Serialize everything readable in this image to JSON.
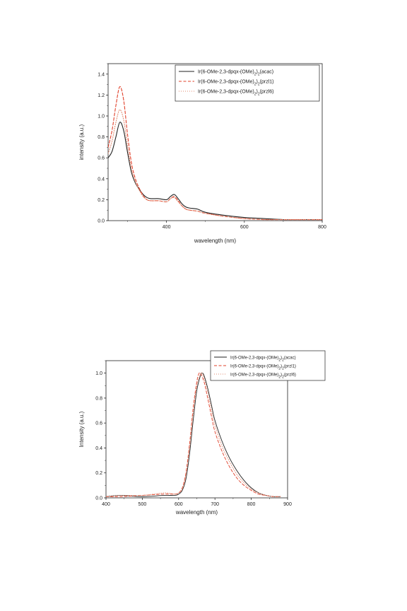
{
  "chart_data": [
    {
      "type": "line",
      "xlabel": "wavelength (nm)",
      "ylabel": "intensity (a.u.)",
      "xlim": [
        250,
        800
      ],
      "ylim": [
        0,
        1.5
      ],
      "xticks": [
        "400",
        "600",
        "800"
      ],
      "yticks": [
        "0.0",
        "0.2",
        "0.4",
        "0.6",
        "0.8",
        "1.0",
        "1.2",
        "1.4"
      ],
      "legend_placement": "top-right",
      "grid": false,
      "series": [
        {
          "name": "Ir(6-OMe-2,3-dpqx-(OMe)2)2(acac)",
          "color": "#222222",
          "dash": "solid",
          "x": [
            250,
            260,
            270,
            280,
            290,
            300,
            310,
            320,
            330,
            340,
            350,
            360,
            380,
            400,
            410,
            420,
            430,
            440,
            450,
            460,
            480,
            500,
            550,
            600,
            650,
            700,
            750,
            800
          ],
          "y": [
            0.6,
            0.66,
            0.8,
            0.94,
            0.86,
            0.65,
            0.46,
            0.36,
            0.3,
            0.25,
            0.22,
            0.21,
            0.21,
            0.2,
            0.23,
            0.25,
            0.21,
            0.16,
            0.13,
            0.12,
            0.11,
            0.08,
            0.05,
            0.03,
            0.02,
            0.01,
            0.01,
            0.01
          ]
        },
        {
          "name": "Ir(6-OMe-2,3-dpqx-(OMe)2)2(przl1)",
          "color": "#e0402a",
          "dash": "dashed",
          "x": [
            250,
            260,
            270,
            280,
            290,
            300,
            310,
            320,
            330,
            340,
            350,
            360,
            380,
            400,
            410,
            420,
            430,
            440,
            450,
            460,
            480,
            500,
            550,
            600,
            650,
            700,
            750,
            800
          ],
          "y": [
            0.7,
            0.86,
            1.1,
            1.28,
            1.15,
            0.82,
            0.55,
            0.4,
            0.31,
            0.24,
            0.2,
            0.19,
            0.19,
            0.18,
            0.21,
            0.23,
            0.19,
            0.14,
            0.11,
            0.1,
            0.09,
            0.07,
            0.04,
            0.02,
            0.01,
            0.01,
            0.01,
            0.01
          ]
        },
        {
          "name": "Ir(6-OMe-2,3-dpqx-(OMe)2)2(przl6)",
          "color": "#e08a70",
          "dash": "dotted",
          "x": [
            250,
            260,
            270,
            280,
            290,
            300,
            310,
            320,
            330,
            340,
            350,
            360,
            380,
            400,
            410,
            420,
            430,
            440,
            450,
            460,
            480,
            500,
            550,
            600,
            650,
            700,
            750,
            800
          ],
          "y": [
            0.64,
            0.76,
            0.94,
            1.06,
            0.96,
            0.71,
            0.49,
            0.37,
            0.29,
            0.23,
            0.2,
            0.19,
            0.19,
            0.18,
            0.21,
            0.22,
            0.18,
            0.14,
            0.11,
            0.1,
            0.09,
            0.07,
            0.04,
            0.02,
            0.01,
            0.01,
            0.01,
            0.01
          ]
        }
      ]
    },
    {
      "type": "line",
      "xlabel": "wavelength (nm)",
      "ylabel": "Intensity (a.u.)",
      "xlim": [
        400,
        900
      ],
      "ylim": [
        0,
        1.1
      ],
      "xticks": [
        "400",
        "500",
        "600",
        "700",
        "800",
        "900"
      ],
      "yticks": [
        "0.0",
        "0.2",
        "0.4",
        "0.6",
        "0.8",
        "1.0"
      ],
      "legend_placement": "top-right",
      "grid": false,
      "series": [
        {
          "name": "Ir(6-OMe-2,3-dpqx-(OMe)2)2(acac)",
          "color": "#222222",
          "dash": "solid",
          "x": [
            400,
            440,
            500,
            560,
            590,
            600,
            610,
            620,
            630,
            640,
            650,
            660,
            665,
            670,
            680,
            690,
            700,
            720,
            740,
            760,
            780,
            800,
            820,
            840,
            860,
            880
          ],
          "y": [
            0.01,
            0.02,
            0.01,
            0.02,
            0.02,
            0.03,
            0.06,
            0.15,
            0.35,
            0.62,
            0.86,
            0.98,
            1.0,
            0.98,
            0.88,
            0.75,
            0.62,
            0.45,
            0.32,
            0.22,
            0.14,
            0.08,
            0.04,
            0.02,
            0.01,
            0.01
          ]
        },
        {
          "name": "Ir(6-OMe-2,3-dpqx-(OMe)2)2(przl1)",
          "color": "#e0402a",
          "dash": "dashed",
          "x": [
            400,
            440,
            500,
            560,
            590,
            600,
            610,
            620,
            630,
            640,
            650,
            655,
            660,
            670,
            680,
            690,
            700,
            720,
            740,
            760,
            780,
            800,
            820,
            840,
            860,
            880
          ],
          "y": [
            0.01,
            0.01,
            0.02,
            0.03,
            0.03,
            0.04,
            0.08,
            0.2,
            0.43,
            0.72,
            0.93,
            0.99,
            1.0,
            0.93,
            0.8,
            0.66,
            0.53,
            0.37,
            0.25,
            0.16,
            0.1,
            0.06,
            0.03,
            0.02,
            0.01,
            0.01
          ]
        },
        {
          "name": "Ir(6-OMe-2,3-dpqx-(OMe)2)2(przl6)",
          "color": "#e08a70",
          "dash": "dotted",
          "x": [
            400,
            440,
            500,
            560,
            590,
            600,
            610,
            620,
            630,
            640,
            650,
            660,
            665,
            670,
            680,
            690,
            700,
            720,
            740,
            760,
            780,
            800,
            820,
            840,
            860,
            880
          ],
          "y": [
            0.01,
            0.02,
            0.02,
            0.04,
            0.03,
            0.04,
            0.07,
            0.18,
            0.4,
            0.68,
            0.9,
            0.99,
            1.0,
            0.96,
            0.85,
            0.71,
            0.58,
            0.41,
            0.29,
            0.19,
            0.12,
            0.07,
            0.04,
            0.02,
            0.01,
            0.01
          ]
        }
      ]
    }
  ],
  "legend_text": [
    {
      "entries": [
        {
          "prefix": "Ir(6-OMe-2,3-dpqx-(OMe)",
          "sub1": "2",
          "mid": ")",
          "sub2": "2",
          "suffix": "(acac)"
        },
        {
          "prefix": "Ir(6-OMe-2,3-dpqx-(OMe)",
          "sub1": "2",
          "mid": ")",
          "sub2": "2",
          "suffix": "(przl1)"
        },
        {
          "prefix": "Ir(6-OMe-2,3-dpqx-(OMe)",
          "sub1": "2",
          "mid": ")",
          "sub2": "2",
          "suffix": "(przl6)"
        }
      ]
    },
    {
      "entries": [
        {
          "prefix": "Ir(6-OMe-2,3-dpqx-(OMe)",
          "sub1": "2",
          "mid": ")",
          "sub2": "2",
          "suffix": "(acac)"
        },
        {
          "prefix": "Ir(6-OMe-2,3-dpqx-(OMe)",
          "sub1": "2",
          "mid": ")",
          "sub2": "2",
          "suffix": "(przl1)"
        },
        {
          "prefix": "Ir(6-OMe-2,3-dpqx-(OMe)",
          "sub1": "2",
          "mid": ")",
          "sub2": "2",
          "suffix": "(przl6)"
        }
      ]
    }
  ]
}
